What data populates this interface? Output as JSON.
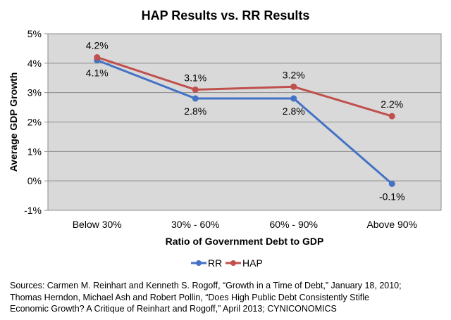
{
  "chart_data": {
    "type": "line",
    "title": "HAP Results vs. RR Results",
    "xlabel": "Ratio of Government Debt to GDP",
    "ylabel": "Average GDP Growth",
    "categories": [
      "Below 30%",
      "30% - 60%",
      "60% - 90%",
      "Above 90%"
    ],
    "ylim": [
      -1,
      5
    ],
    "yticks": [
      -1,
      0,
      1,
      2,
      3,
      4,
      5
    ],
    "ytick_labels": [
      "-1%",
      "0%",
      "1%",
      "2%",
      "3%",
      "4%",
      "5%"
    ],
    "grid": true,
    "legend_position": "bottom",
    "series": [
      {
        "name": "RR",
        "color": "#4472C4",
        "values": [
          4.1,
          2.8,
          2.8,
          -0.1
        ],
        "labels": [
          "4.1%",
          "2.8%",
          "2.8%",
          "-0.1%"
        ],
        "label_position": "below"
      },
      {
        "name": "HAP",
        "color": "#C0504D",
        "values": [
          4.2,
          3.1,
          3.2,
          2.2
        ],
        "labels": [
          "4.2%",
          "3.1%",
          "3.2%",
          "2.2%"
        ],
        "label_position": "above"
      }
    ]
  },
  "sources": {
    "line1": "Sources:  Carmen M. Reinhart and Kenneth S. Rogoff, “Growth in a Time of Debt,” January 18, 2010;",
    "line2": "Thomas Herndon, Michael Ash and Robert Pollin, “Does High Public Debt Consistently Stifle",
    "line3": "Economic Growth? A Critique of Reinhart and Rogoff,” April 2013; CYNICONOMICS"
  }
}
